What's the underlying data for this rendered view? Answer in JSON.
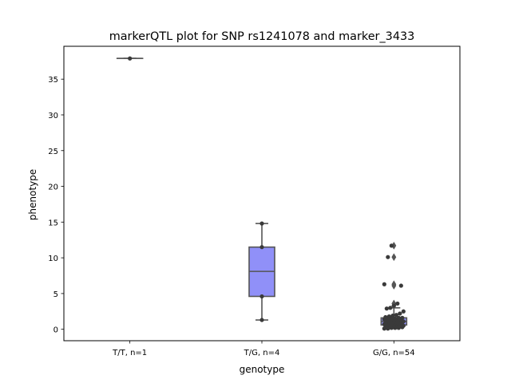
{
  "chart_data": {
    "type": "box",
    "title": "markerQTL plot for SNP rs1241078 and marker_3433",
    "xlabel": "genotype",
    "ylabel": "phenotype",
    "ylim": [
      -1.6,
      39.6
    ],
    "yticks": [
      0,
      5,
      10,
      15,
      20,
      25,
      30,
      35
    ],
    "categories": [
      "T/T, n=1",
      "T/G, n=4",
      "G/G, n=54"
    ],
    "grid": false,
    "legend": "none",
    "colors": {
      "box": "#9090f8",
      "edge": "#555555",
      "points": "#3a3a3a"
    },
    "boxes": [
      {
        "category": "T/T, n=1",
        "min": 37.9,
        "q1": 37.9,
        "median": 37.9,
        "q3": 37.9,
        "max": 37.9,
        "outliers": []
      },
      {
        "category": "T/G, n=4",
        "min": 1.3,
        "q1": 4.6,
        "median": 8.1,
        "q3": 11.5,
        "max": 14.8,
        "outliers": []
      },
      {
        "category": "G/G, n=54",
        "min": 0.1,
        "q1": 0.6,
        "median": 1.1,
        "q3": 1.6,
        "max": 3.0,
        "outliers": [
          3.3,
          3.6,
          6.1,
          6.3,
          10.1,
          11.7
        ]
      }
    ],
    "points": [
      {
        "category": "T/T, n=1",
        "values": [
          37.9
        ]
      },
      {
        "category": "T/G, n=4",
        "values": [
          1.3,
          4.6,
          11.5,
          14.8
        ]
      },
      {
        "category": "G/G, n=54",
        "values": [
          0.1,
          0.1,
          0.2,
          0.2,
          0.2,
          0.3,
          0.3,
          0.3,
          0.4,
          0.4,
          0.4,
          0.5,
          0.5,
          0.5,
          0.6,
          0.6,
          0.6,
          0.7,
          0.7,
          0.8,
          0.8,
          0.8,
          0.9,
          0.9,
          1.0,
          1.0,
          1.0,
          1.1,
          1.1,
          1.2,
          1.2,
          1.3,
          1.3,
          1.3,
          1.4,
          1.4,
          1.5,
          1.5,
          1.6,
          1.6,
          1.7,
          1.8,
          1.9,
          2.0,
          2.2,
          2.5,
          2.9,
          3.0,
          3.3,
          3.6,
          6.1,
          6.3,
          10.1,
          11.7
        ]
      }
    ]
  }
}
